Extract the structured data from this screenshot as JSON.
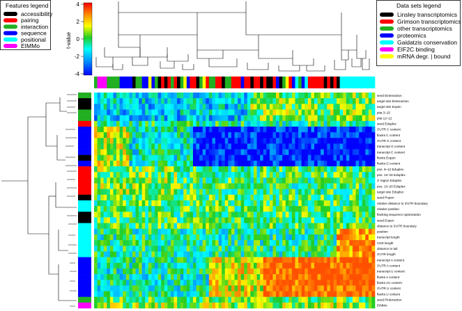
{
  "features_legend": {
    "title": "Features legend",
    "items": [
      {
        "label": "accessibility",
        "color": "#000000"
      },
      {
        "label": "pairing",
        "color": "#ff0000"
      },
      {
        "label": "interaction",
        "color": "#22b022"
      },
      {
        "label": "sequence",
        "color": "#0000ff"
      },
      {
        "label": "positional",
        "color": "#00ffff"
      },
      {
        "label": "EIMMo",
        "color": "#ff00ff"
      }
    ]
  },
  "datasets_legend": {
    "title": "Data sets legend",
    "items": [
      {
        "label": "Linsley transcriptomics",
        "color": "#000000"
      },
      {
        "label": "Grimson transcriptomics",
        "color": "#ff0000"
      },
      {
        "label": "other transcriptomics",
        "color": "#22b022"
      },
      {
        "label": "proteomics",
        "color": "#0000ff"
      },
      {
        "label": "Gaidatzis conservation",
        "color": "#00ffff"
      },
      {
        "label": "EIF2C binding",
        "color": "#ff00ff"
      },
      {
        "label": "mRNA degr. | bound",
        "color": "#ffff00"
      }
    ]
  },
  "chart_data": {
    "type": "heatmap",
    "color_scale": {
      "label": "t-value",
      "ticks": [
        "4",
        "2",
        "0",
        "-2",
        "-4"
      ],
      "range": [
        -4,
        4
      ]
    },
    "rows": [
      {
        "label": "seed Einteraction",
        "group": "interaction"
      },
      {
        "label": "target site Einteraction",
        "group": "accessibility"
      },
      {
        "label": "target site Eopen",
        "group": "accessibility"
      },
      {
        "label": "pita 3–15",
        "group": "interaction"
      },
      {
        "label": "pita 12–12",
        "group": "interaction"
      },
      {
        "label": "seed Eduplex",
        "group": "pairing"
      },
      {
        "label": "3'UTR C content",
        "group": "sequence"
      },
      {
        "label": "flanks C content",
        "group": "sequence"
      },
      {
        "label": "3'UTR G content",
        "group": "sequence"
      },
      {
        "label": "transcript G content",
        "group": "sequence"
      },
      {
        "label": "transcript C content",
        "group": "sequence"
      },
      {
        "label": "flanks Eopen",
        "group": "accessibility"
      },
      {
        "label": "flanks G content",
        "group": "sequence"
      },
      {
        "label": "pos. 9–12 Eduplex",
        "group": "pairing"
      },
      {
        "label": "pos. 13–16 Eduplex",
        "group": "pairing"
      },
      {
        "label": "3' region Eduplex",
        "group": "pairing"
      },
      {
        "label": "pos. 13–20 Eduplex",
        "group": "pairing"
      },
      {
        "label": "target site Eduplex",
        "group": "pairing"
      },
      {
        "label": "seed Popen",
        "group": "accessibility"
      },
      {
        "label": "relative distance to 3'UTR boundary",
        "group": "positional"
      },
      {
        "label": "relative position",
        "group": "positional"
      },
      {
        "label": "flanking sequence optimization",
        "group": "accessibility"
      },
      {
        "label": "seed Eopen",
        "group": "accessibility"
      },
      {
        "label": "distance to 3'UTR boundary",
        "group": "positional"
      },
      {
        "label": "position",
        "group": "positional"
      },
      {
        "label": "transcript length",
        "group": "positional"
      },
      {
        "label": "CDS length",
        "group": "positional"
      },
      {
        "label": "distance to tail",
        "group": "positional"
      },
      {
        "label": "3'UTR length",
        "group": "positional"
      },
      {
        "label": "transcript A content",
        "group": "sequence"
      },
      {
        "label": "3'UTR A content",
        "group": "sequence"
      },
      {
        "label": "transcript U content",
        "group": "sequence"
      },
      {
        "label": "flanks A content",
        "group": "sequence"
      },
      {
        "label": "flanks AU content",
        "group": "sequence"
      },
      {
        "label": "3'UTR U content",
        "group": "sequence"
      },
      {
        "label": "flanks U content",
        "group": "sequence"
      },
      {
        "label": "seed Pinteraction",
        "group": "interaction"
      },
      {
        "label": "EIMMo",
        "group": "EIMMo"
      }
    ],
    "column_datasets": [
      "green",
      "magenta",
      "magenta",
      "magenta",
      "green",
      "green",
      "green",
      "green",
      "blue",
      "blue",
      "blue",
      "blue",
      "black",
      "green",
      "green",
      "blue",
      "blue",
      "yellow",
      "blue",
      "green",
      "black",
      "red",
      "black",
      "red",
      "green",
      "red",
      "black",
      "green",
      "yellow",
      "blue",
      "red",
      "red",
      "black",
      "green",
      "yellow",
      "red",
      "green",
      "green",
      "red",
      "red",
      "black",
      "green",
      "green",
      "red",
      "red",
      "red",
      "blue",
      "red",
      "red",
      "black",
      "red",
      "red",
      "black",
      "red",
      "black",
      "black",
      "red",
      "blue",
      "black",
      "green",
      "yellow",
      "red",
      "blue",
      "cyan",
      "green",
      "blue",
      "cyan",
      "red",
      "red",
      "red",
      "red",
      "red",
      "black",
      "red",
      "black",
      "red",
      "black",
      "cyan",
      "cyan",
      "cyan",
      "cyan",
      "cyan",
      "cyan",
      "cyan",
      "cyan",
      "cyan",
      "cyan",
      "cyan"
    ]
  }
}
